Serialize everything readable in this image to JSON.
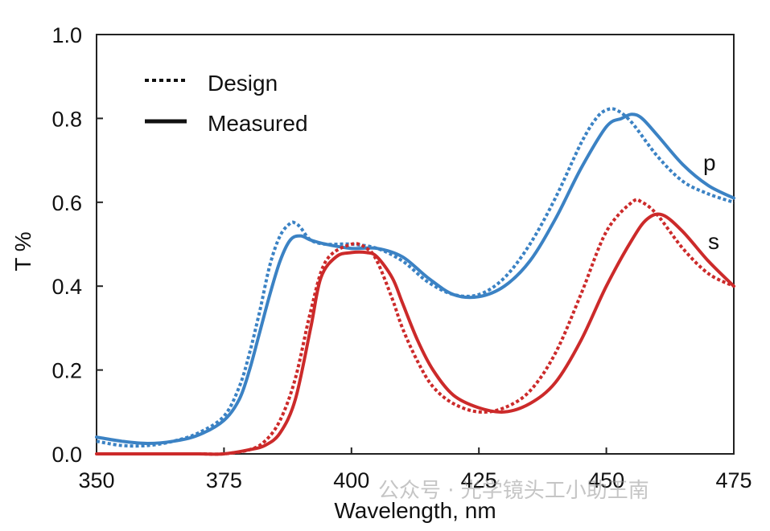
{
  "chart_data": {
    "type": "line",
    "xlabel": "Wavelength, nm",
    "ylabel": "T %",
    "xlim": [
      350,
      475
    ],
    "ylim": [
      0.0,
      1.0
    ],
    "x_ticks": [
      350,
      375,
      400,
      425,
      450,
      475
    ],
    "y_ticks": [
      "0.0",
      "0.2",
      "0.4",
      "0.6",
      "0.8",
      "1.0"
    ],
    "legend": {
      "placement": "top-left",
      "entries": [
        {
          "label": "Design",
          "style": "dotted"
        },
        {
          "label": "Measured",
          "style": "solid"
        }
      ]
    },
    "curve_labels": [
      {
        "text": "p",
        "x": 472,
        "y": 0.69
      },
      {
        "text": "s",
        "x": 472,
        "y": 0.5
      }
    ],
    "colors": {
      "p": "#3b82c4",
      "s": "#cc2a2a"
    },
    "series": [
      {
        "pol": "p",
        "style": "dotted",
        "color": "#3b82c4",
        "x": [
          350,
          355,
          360,
          365,
          370,
          375,
          378,
          380,
          382,
          384,
          386,
          388,
          389,
          390,
          392,
          395,
          400,
          405,
          410,
          415,
          420,
          425,
          430,
          435,
          440,
          445,
          448,
          450,
          452,
          455,
          460,
          465,
          470,
          475
        ],
        "y": [
          0.03,
          0.02,
          0.02,
          0.03,
          0.05,
          0.09,
          0.16,
          0.24,
          0.34,
          0.45,
          0.52,
          0.55,
          0.55,
          0.54,
          0.51,
          0.5,
          0.5,
          0.49,
          0.46,
          0.41,
          0.38,
          0.38,
          0.42,
          0.5,
          0.61,
          0.74,
          0.8,
          0.82,
          0.82,
          0.79,
          0.71,
          0.65,
          0.62,
          0.6
        ]
      },
      {
        "pol": "p",
        "style": "solid",
        "color": "#3b82c4",
        "x": [
          350,
          355,
          360,
          365,
          370,
          375,
          378,
          380,
          382,
          384,
          386,
          388,
          390,
          392,
          395,
          400,
          405,
          410,
          415,
          420,
          425,
          430,
          435,
          440,
          445,
          450,
          453,
          455,
          457,
          460,
          465,
          470,
          475
        ],
        "y": [
          0.04,
          0.03,
          0.025,
          0.03,
          0.045,
          0.08,
          0.13,
          0.2,
          0.29,
          0.38,
          0.46,
          0.51,
          0.52,
          0.51,
          0.5,
          0.49,
          0.49,
          0.47,
          0.42,
          0.38,
          0.375,
          0.4,
          0.46,
          0.56,
          0.68,
          0.78,
          0.8,
          0.81,
          0.8,
          0.76,
          0.69,
          0.64,
          0.61
        ]
      },
      {
        "pol": "s",
        "style": "dotted",
        "color": "#cc2a2a",
        "x": [
          350,
          360,
          370,
          375,
          380,
          383,
          386,
          389,
          392,
          395,
          400,
          403,
          405,
          408,
          410,
          413,
          416,
          420,
          425,
          430,
          435,
          440,
          445,
          450,
          455,
          457,
          460,
          465,
          470,
          475
        ],
        "y": [
          0.0,
          0.0,
          0.0,
          0.0,
          0.01,
          0.03,
          0.08,
          0.18,
          0.34,
          0.46,
          0.5,
          0.49,
          0.46,
          0.37,
          0.3,
          0.22,
          0.16,
          0.12,
          0.1,
          0.11,
          0.15,
          0.24,
          0.38,
          0.53,
          0.6,
          0.6,
          0.57,
          0.49,
          0.43,
          0.4
        ]
      },
      {
        "pol": "s",
        "style": "solid",
        "color": "#cc2a2a",
        "x": [
          350,
          360,
          370,
          375,
          380,
          383,
          386,
          389,
          392,
          394,
          397,
          400,
          403,
          405,
          408,
          410,
          413,
          416,
          420,
          425,
          430,
          435,
          440,
          445,
          450,
          455,
          458,
          461,
          465,
          470,
          475
        ],
        "y": [
          0.0,
          0.0,
          0.0,
          0.0,
          0.01,
          0.02,
          0.05,
          0.13,
          0.3,
          0.42,
          0.47,
          0.48,
          0.48,
          0.47,
          0.42,
          0.36,
          0.27,
          0.2,
          0.14,
          0.11,
          0.1,
          0.12,
          0.17,
          0.27,
          0.4,
          0.51,
          0.56,
          0.57,
          0.53,
          0.46,
          0.4
        ]
      }
    ]
  },
  "watermark": "公众号 · 光学镜头工小助王南"
}
